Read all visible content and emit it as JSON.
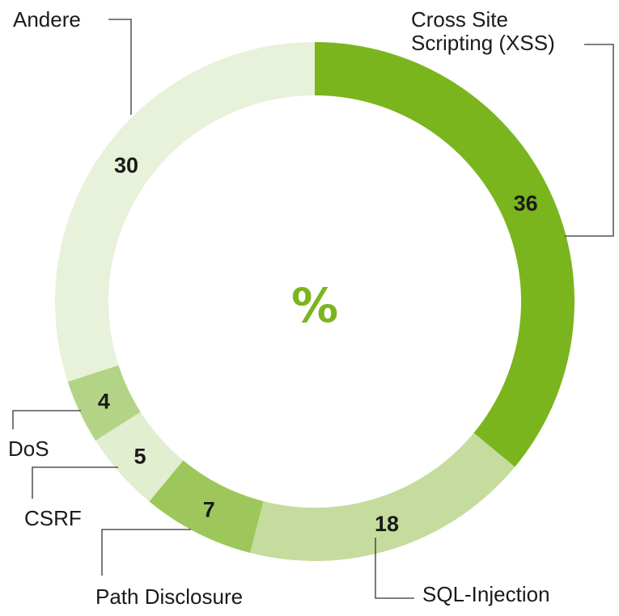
{
  "chart_data": {
    "type": "pie",
    "center_label": "%",
    "center_color": "#7ab51d",
    "slices": [
      {
        "label": "Cross Site Scripting (XSS)",
        "label_lines": [
          "Cross Site",
          "Scripting (XSS)"
        ],
        "value": 36,
        "color": "#7ab51d"
      },
      {
        "label": "SQL-Injection",
        "label_lines": [
          "SQL-Injection"
        ],
        "value": 18,
        "color": "#c5dc9e"
      },
      {
        "label": "Path Disclosure",
        "label_lines": [
          "Path Disclosure"
        ],
        "value": 7,
        "color": "#9dc75a"
      },
      {
        "label": "CSRF",
        "label_lines": [
          "CSRF"
        ],
        "value": 5,
        "color": "#e2eed0"
      },
      {
        "label": "DoS",
        "label_lines": [
          "DoS"
        ],
        "value": 4,
        "color": "#b3d486"
      },
      {
        "label": "Andere",
        "label_lines": [
          "Andere"
        ],
        "value": 30,
        "color": "#e8f1da"
      }
    ]
  }
}
